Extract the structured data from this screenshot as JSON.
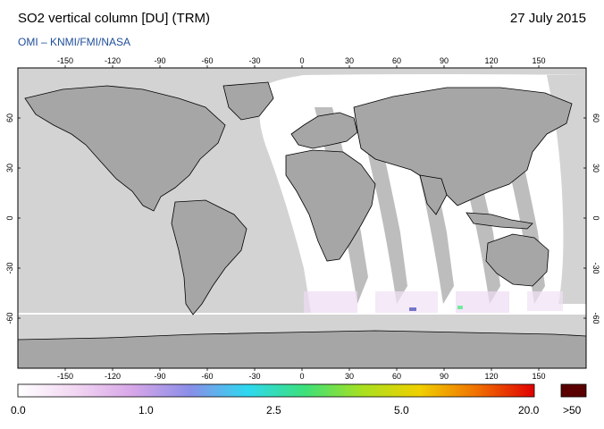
{
  "header": {
    "title": "SO2 vertical column [DU] (TRM)",
    "date": "27 July 2015",
    "source": "OMI  –  KNMI/FMI/NASA"
  },
  "map": {
    "lon_ticks": [
      "-150",
      "-120",
      "-90",
      "-60",
      "-30",
      "0",
      "30",
      "60",
      "90",
      "120",
      "150"
    ],
    "lat_ticks": [
      "60",
      "30",
      "0",
      "-30",
      "-60"
    ],
    "colors": {
      "ocean": "#ffffff",
      "land": "#a6a6a6",
      "no_data": "#d3d3d3",
      "coast": "#000000"
    }
  },
  "colorbar": {
    "labels": [
      "0.0",
      "1.0",
      "2.5",
      "5.0",
      "20.0"
    ],
    "overflow_label": ">50",
    "overflow_color": "#5a0000",
    "gradient": [
      "#ffffff",
      "#f2d6f2",
      "#d7a6e8",
      "#8a8ee8",
      "#2ed8f0",
      "#3ce07a",
      "#a8e020",
      "#f0d000",
      "#f07000",
      "#e00000"
    ]
  }
}
